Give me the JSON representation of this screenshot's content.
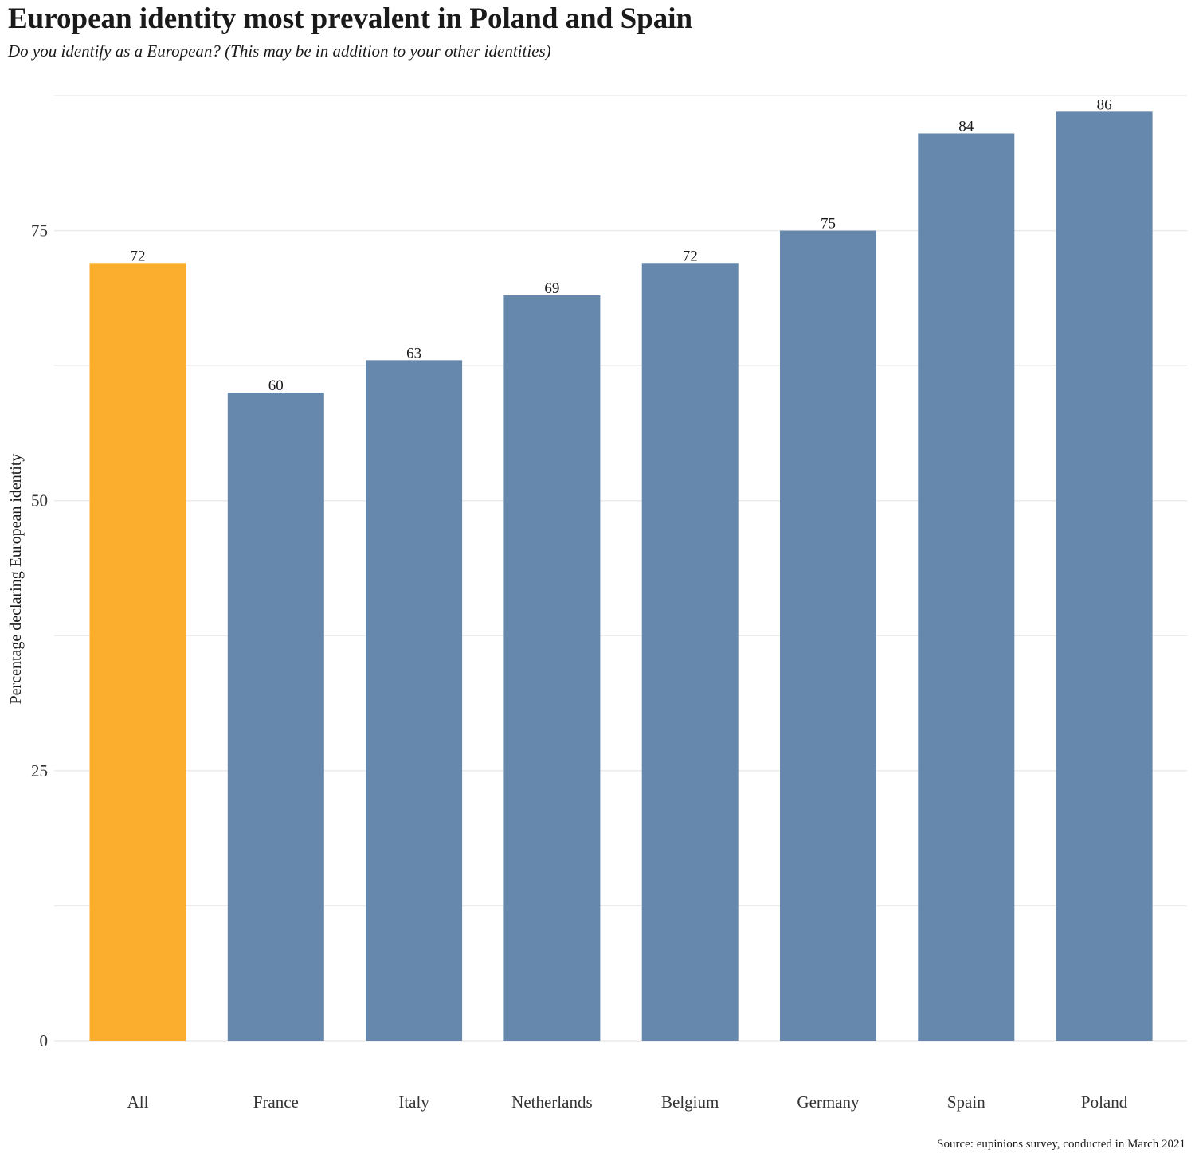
{
  "colors": {
    "highlight": "#FBAE2E",
    "bar": "#6588AC",
    "grid": "#EBEBEB"
  },
  "chart_data": {
    "type": "bar",
    "title": "European identity most prevalent in Poland and Spain",
    "subtitle": "Do you identify as a European? (This may be in addition to your other identities)",
    "source": "Source: eupinions survey, conducted in March 2021",
    "xlabel": "",
    "ylabel": "Percentage declaring European identity",
    "categories": [
      "All",
      "France",
      "Italy",
      "Netherlands",
      "Belgium",
      "Germany",
      "Spain",
      "Poland"
    ],
    "values": [
      72,
      60,
      63,
      69,
      72,
      75,
      84,
      86
    ],
    "value_labels": [
      "72",
      "60",
      "63",
      "69",
      "72",
      "75",
      "84",
      "86"
    ],
    "highlighted_category": "All",
    "ylim": [
      0,
      87.5
    ],
    "yticks": [
      0,
      25,
      50,
      75
    ],
    "yticks_minor": [
      12.5,
      37.5,
      62.5,
      87.5
    ],
    "ytick_labels": [
      "0",
      "25",
      "50",
      "75"
    ],
    "grid": true,
    "legend": "none"
  }
}
